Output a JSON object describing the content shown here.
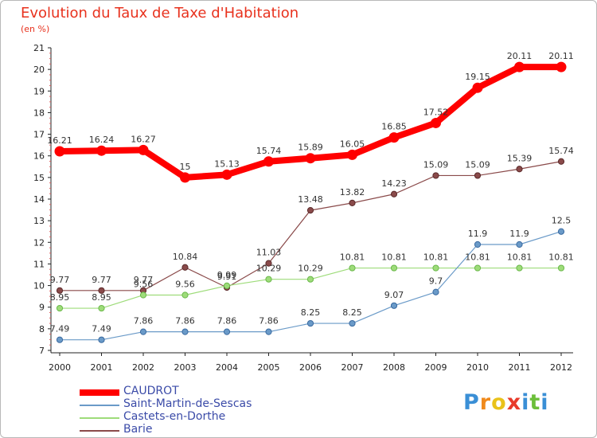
{
  "title": "Evolution du Taux de Taxe d'Habitation",
  "unit": "(en %)",
  "logo": {
    "letters": [
      "P",
      "r",
      "o",
      "x",
      "i",
      "t",
      "i"
    ],
    "colors": [
      "#3a8fd6",
      "#f08a1c",
      "#e9c21a",
      "#e83a2a",
      "#3a8fd6",
      "#6cbf3a",
      "#3a8fd6"
    ]
  },
  "chart_data": {
    "type": "line",
    "x": [
      "2000",
      "2001",
      "2002",
      "2003",
      "2004",
      "2005",
      "2006",
      "2007",
      "2008",
      "2009",
      "2010",
      "2011",
      "2012"
    ],
    "ylim": [
      7,
      21
    ],
    "yticks": [
      7,
      8,
      9,
      10,
      11,
      12,
      13,
      14,
      15,
      16,
      17,
      18,
      19,
      20,
      21
    ],
    "grid": false,
    "legend_position": "bottom-left",
    "series": [
      {
        "name": "CAUDROT",
        "color": "#ff0000",
        "width": 8,
        "values": [
          16.21,
          16.24,
          16.27,
          15,
          15.13,
          15.74,
          15.89,
          16.05,
          16.85,
          17.52,
          19.15,
          20.11,
          20.11
        ],
        "labels": [
          "16.21",
          "16.24",
          "16.27",
          "15",
          "15.13",
          "15.74",
          "15.89",
          "16.05",
          "16.85",
          "17.52",
          "19.15",
          "20.11",
          "20.11"
        ]
      },
      {
        "name": "Saint-Martin-de-Sescas",
        "color": "#6a9ac8",
        "width": 1.2,
        "values": [
          7.49,
          7.49,
          7.86,
          7.86,
          7.86,
          7.86,
          8.25,
          8.25,
          9.07,
          9.7,
          11.9,
          11.9,
          12.5
        ],
        "labels": [
          "7.49",
          "7.49",
          "7.86",
          "7.86",
          "7.86",
          "7.86",
          "8.25",
          "8.25",
          "9.07",
          "9.7",
          "11.9",
          "11.9",
          "12.5"
        ]
      },
      {
        "name": "Castets-en-Dorthe",
        "color": "#9edc7a",
        "width": 1.2,
        "values": [
          8.95,
          8.95,
          9.56,
          9.56,
          9.99,
          10.29,
          10.29,
          10.81,
          10.81,
          10.81,
          10.81,
          10.81,
          10.81
        ],
        "labels": [
          "8.95",
          "8.95",
          "9.56",
          "9.56",
          "9.99",
          "10.29",
          "10.29",
          "10.81",
          "10.81",
          "10.81",
          "10.81",
          "10.81",
          "10.81"
        ]
      },
      {
        "name": "Barie",
        "color": "#8a4a4a",
        "width": 1.2,
        "values": [
          9.77,
          9.77,
          9.77,
          10.84,
          9.91,
          11.03,
          13.48,
          13.82,
          14.23,
          15.09,
          15.09,
          15.39,
          15.74
        ],
        "labels": [
          "9.77",
          "9.77",
          "9.77",
          "10.84",
          "9.91",
          "11.03",
          "13.48",
          "13.82",
          "14.23",
          "15.09",
          "15.09",
          "15.39",
          "15.74"
        ]
      }
    ]
  }
}
